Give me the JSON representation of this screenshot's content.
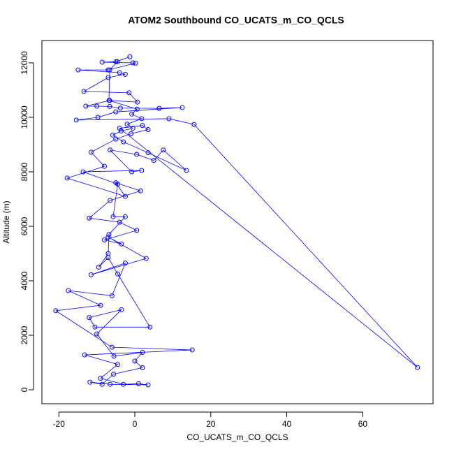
{
  "chart_data": {
    "type": "line",
    "title": "ATOM2 Southbound CO_UCATS_m_CO_QCLS",
    "x_label": "CO_UCATS_m_CO_QCLS",
    "y_label": "Altitude (m)",
    "xlim": [
      -24.45,
      78.5
    ],
    "ylim": [
      -513,
      12820
    ],
    "xticks": [
      -20,
      0,
      20,
      40,
      60
    ],
    "yticks": [
      0,
      2000,
      4000,
      6000,
      8000,
      10000,
      12000
    ],
    "x": [
      -1.3,
      -5,
      -8.6,
      -0.5,
      0.2,
      -7,
      -14.9,
      -4,
      -2.5,
      -7,
      -13.4,
      -1.5,
      0.7,
      -6.6,
      -12.9,
      -10,
      -6.6,
      -3.8,
      6.4,
      12.5,
      -5,
      -9.7,
      -15.4,
      9,
      15.6,
      74.4,
      -4,
      2,
      3.5,
      -1,
      -5,
      -11.5,
      -8,
      -17.8,
      -2.5,
      -5,
      1.5,
      -6.5,
      -12,
      -4,
      0.5,
      -8,
      -3.5,
      -7,
      3,
      -11.5,
      -2.5,
      -6,
      -17.5,
      -9,
      -20.8,
      -6,
      15.1,
      -13.2,
      -4.5,
      -9,
      -3,
      1,
      3.5,
      -6.5,
      -11.8,
      -8.6,
      -5.6,
      2,
      0,
      2,
      -5.5,
      -10,
      -3.5,
      -12,
      -10.5,
      4,
      -4.5,
      -7,
      -9.5,
      -7,
      -6.8,
      -2.5,
      -5.7,
      -4.5,
      -13.6,
      1.8,
      -0.8,
      -6.5,
      0.5,
      5,
      7.5,
      13.6,
      3.5,
      -3,
      -5.8,
      -3.6,
      -0.5,
      -2,
      1.8,
      -0.8,
      0.6,
      -6.8,
      -6.6,
      -4.6
    ],
    "series": [
      {
        "name": "CO",
        "color": "#0000ff",
        "values": [
          12220,
          12040,
          12025,
          12000,
          11990,
          11740,
          11740,
          11640,
          11580,
          11460,
          10950,
          10900,
          10560,
          10620,
          10410,
          10410,
          10400,
          10340,
          10330,
          10360,
          10200,
          10000,
          9900,
          9950,
          9740,
          820,
          9600,
          9700,
          9550,
          9400,
          9200,
          8720,
          8200,
          7770,
          7100,
          7600,
          7300,
          6950,
          6300,
          6150,
          5850,
          5500,
          5350,
          5600,
          4820,
          4220,
          4650,
          3450,
          3640,
          3100,
          2900,
          1560,
          1460,
          1280,
          930,
          420,
          200,
          220,
          180,
          200,
          280,
          200,
          570,
          810,
          1050,
          1370,
          1230,
          2050,
          2940,
          2650,
          2300,
          2300,
          4250,
          4850,
          4500,
          5000,
          5700,
          6350,
          6350,
          7550,
          8000,
          8050,
          8000,
          8800,
          8640,
          8420,
          8800,
          8050,
          8700,
          9100,
          9350,
          9500,
          9600,
          9750,
          9950,
          10120,
          10300,
          10620,
          11740,
          12040
        ]
      }
    ]
  }
}
